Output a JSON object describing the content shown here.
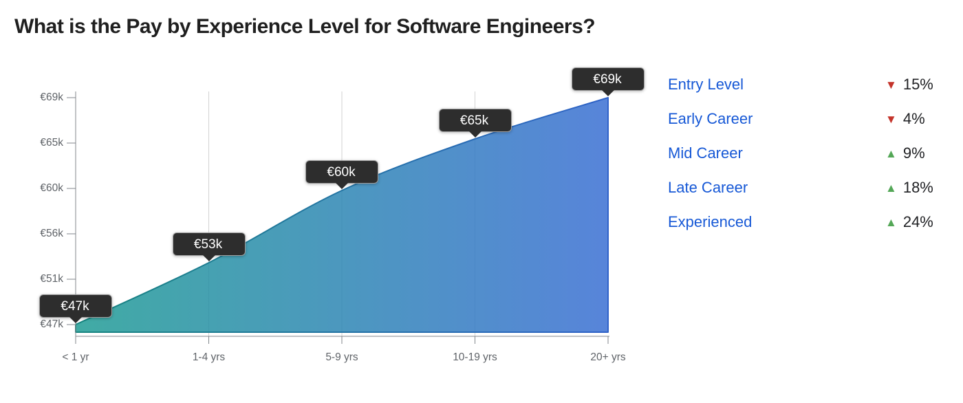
{
  "title": "What is the Pay by Experience Level for Software Engineers?",
  "chart_data": {
    "type": "area",
    "title": "What is the Pay by Experience Level for Software Engineers?",
    "categories": [
      "< 1 yr",
      "1-4 yrs",
      "5-9 yrs",
      "10-19 yrs",
      "20+ yrs"
    ],
    "values": [
      47,
      53,
      60,
      65,
      69
    ],
    "values_unit": "€k (EUR thousands, annual pay)",
    "point_labels": [
      "€47k",
      "€53k",
      "€60k",
      "€65k",
      "€69k"
    ],
    "ytick_labels_bottom_to_top": [
      "€47k",
      "€51k",
      "€56k",
      "€60k",
      "€65k",
      "€69k"
    ],
    "ylim": [
      47,
      69
    ],
    "xlabel": "",
    "ylabel": "",
    "grid": "vertical gridlines at interior categories only",
    "legend_position": "right",
    "fill_gradient": [
      "#1f9c94",
      "#3a6fd3"
    ],
    "stroke_gradient": [
      "#17857f",
      "#2f62c8"
    ]
  },
  "legend": {
    "items": [
      {
        "label": "Entry Level",
        "arrow": "▼",
        "direction": "down",
        "value": "15%"
      },
      {
        "label": "Early Career",
        "arrow": "▼",
        "direction": "down",
        "value": "4%"
      },
      {
        "label": "Mid Career",
        "arrow": "▲",
        "direction": "up",
        "value": "9%"
      },
      {
        "label": "Late Career",
        "arrow": "▲",
        "direction": "up",
        "value": "18%"
      },
      {
        "label": "Experienced",
        "arrow": "▲",
        "direction": "up",
        "value": "24%"
      }
    ],
    "label_color": "#1658d6",
    "value_color": "#202124",
    "up_color": "#54a757",
    "down_color": "#c4342b"
  }
}
